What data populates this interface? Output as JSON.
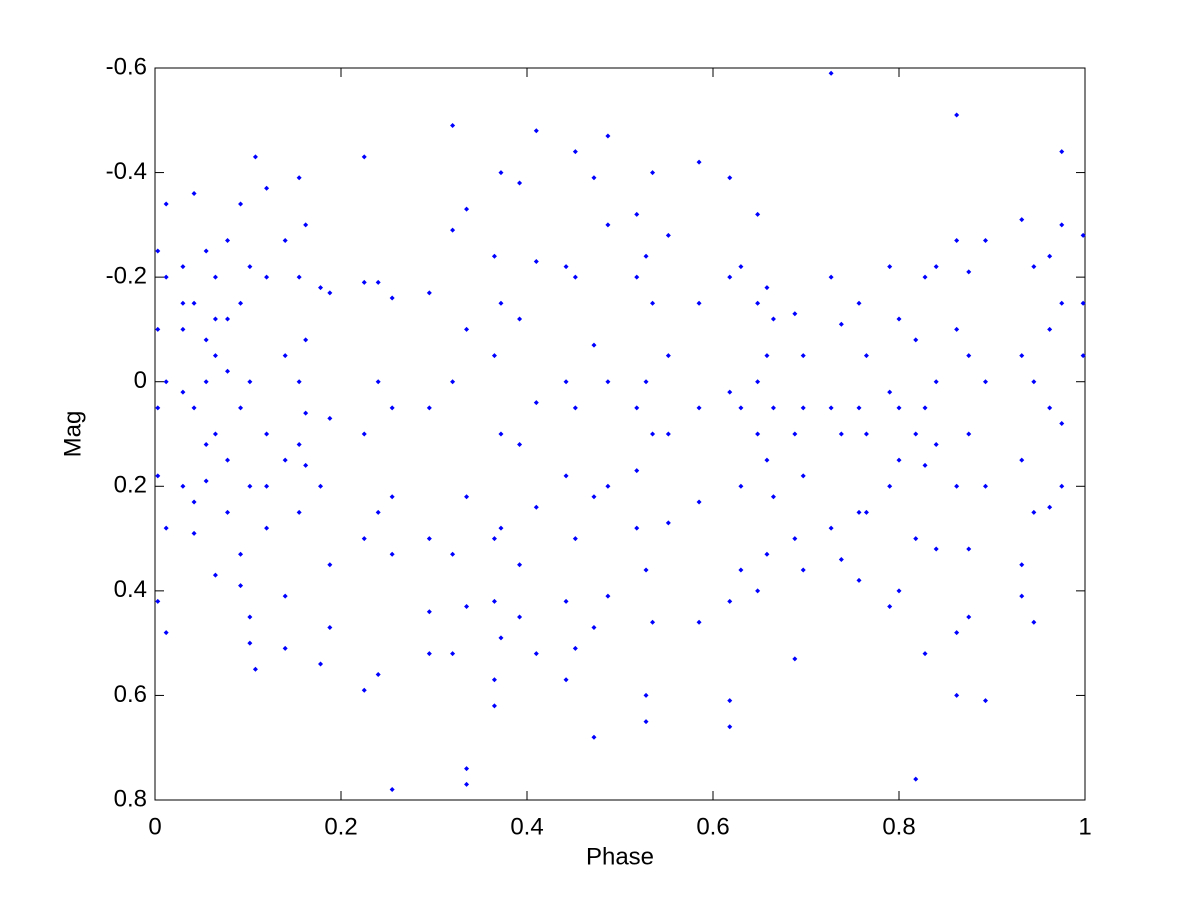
{
  "chart_data": {
    "type": "scatter",
    "x_label": "Phase",
    "y_label": "Mag",
    "color": "#0000ff",
    "xlim": [
      0,
      1
    ],
    "xticks": [
      0,
      0.2,
      0.4,
      0.6,
      0.8,
      1
    ],
    "ylim": [
      0.8,
      -0.6
    ],
    "yticks": [
      -0.6,
      -0.4,
      -0.2,
      0,
      0.2,
      0.4,
      0.6,
      0.8
    ],
    "grid": false,
    "x": [
      0.003,
      0.003,
      0.003,
      0.003,
      0.003,
      0.012,
      0.012,
      0.012,
      0.012,
      0.012,
      0.03,
      0.03,
      0.03,
      0.03,
      0.03,
      0.042,
      0.042,
      0.042,
      0.042,
      0.042,
      0.055,
      0.055,
      0.055,
      0.055,
      0.055,
      0.065,
      0.065,
      0.065,
      0.065,
      0.065,
      0.078,
      0.078,
      0.078,
      0.078,
      0.078,
      0.092,
      0.092,
      0.092,
      0.092,
      0.092,
      0.102,
      0.102,
      0.102,
      0.102,
      0.102,
      0.108,
      0.108,
      0.12,
      0.12,
      0.12,
      0.12,
      0.12,
      0.14,
      0.14,
      0.14,
      0.14,
      0.14,
      0.155,
      0.155,
      0.155,
      0.155,
      0.155,
      0.162,
      0.162,
      0.162,
      0.162,
      0.178,
      0.178,
      0.178,
      0.188,
      0.188,
      0.188,
      0.188,
      0.225,
      0.225,
      0.225,
      0.225,
      0.225,
      0.24,
      0.24,
      0.24,
      0.24,
      0.255,
      0.255,
      0.255,
      0.255,
      0.255,
      0.295,
      0.295,
      0.295,
      0.295,
      0.295,
      0.32,
      0.32,
      0.32,
      0.32,
      0.32,
      0.335,
      0.335,
      0.335,
      0.335,
      0.335,
      0.335,
      0.365,
      0.365,
      0.365,
      0.365,
      0.365,
      0.365,
      0.372,
      0.372,
      0.372,
      0.372,
      0.372,
      0.392,
      0.392,
      0.392,
      0.392,
      0.392,
      0.41,
      0.41,
      0.41,
      0.41,
      0.41,
      0.442,
      0.442,
      0.442,
      0.442,
      0.442,
      0.452,
      0.452,
      0.452,
      0.452,
      0.452,
      0.472,
      0.472,
      0.472,
      0.472,
      0.472,
      0.487,
      0.487,
      0.487,
      0.487,
      0.487,
      0.518,
      0.518,
      0.518,
      0.518,
      0.518,
      0.528,
      0.528,
      0.528,
      0.528,
      0.528,
      0.535,
      0.535,
      0.535,
      0.535,
      0.552,
      0.552,
      0.552,
      0.552,
      0.585,
      0.585,
      0.585,
      0.585,
      0.585,
      0.618,
      0.618,
      0.618,
      0.618,
      0.618,
      0.618,
      0.63,
      0.63,
      0.63,
      0.63,
      0.648,
      0.648,
      0.648,
      0.648,
      0.648,
      0.658,
      0.658,
      0.658,
      0.658,
      0.665,
      0.665,
      0.665,
      0.688,
      0.688,
      0.688,
      0.688,
      0.697,
      0.697,
      0.697,
      0.697,
      0.727,
      0.727,
      0.727,
      0.727,
      0.738,
      0.738,
      0.738,
      0.757,
      0.757,
      0.757,
      0.757,
      0.765,
      0.765,
      0.765,
      0.79,
      0.79,
      0.79,
      0.79,
      0.8,
      0.8,
      0.8,
      0.8,
      0.818,
      0.818,
      0.818,
      0.818,
      0.828,
      0.828,
      0.828,
      0.828,
      0.84,
      0.84,
      0.84,
      0.84,
      0.862,
      0.862,
      0.862,
      0.862,
      0.862,
      0.862,
      0.875,
      0.875,
      0.875,
      0.875,
      0.875,
      0.893,
      0.893,
      0.893,
      0.893,
      0.932,
      0.932,
      0.932,
      0.932,
      0.932,
      0.945,
      0.945,
      0.945,
      0.945,
      0.962,
      0.962,
      0.962,
      0.962,
      0.975,
      0.975,
      0.975,
      0.975,
      0.975,
      0.998,
      0.998,
      0.998
    ],
    "values": [
      -0.25,
      -0.1,
      0.05,
      0.18,
      0.42,
      -0.34,
      -0.2,
      0.0,
      0.28,
      0.48,
      -0.22,
      -0.1,
      0.02,
      0.2,
      -0.15,
      -0.36,
      -0.15,
      0.05,
      0.23,
      0.29,
      -0.25,
      -0.08,
      0.0,
      0.12,
      0.19,
      -0.2,
      -0.05,
      0.1,
      0.37,
      -0.12,
      -0.27,
      -0.12,
      -0.02,
      0.25,
      0.15,
      -0.34,
      -0.15,
      0.05,
      0.33,
      0.39,
      -0.22,
      0.0,
      0.2,
      0.5,
      0.45,
      -0.43,
      0.55,
      -0.37,
      -0.2,
      0.1,
      0.28,
      0.2,
      -0.27,
      -0.05,
      0.15,
      0.41,
      0.51,
      -0.39,
      -0.2,
      0.0,
      0.12,
      0.25,
      -0.3,
      -0.08,
      0.06,
      0.16,
      -0.18,
      0.2,
      0.54,
      -0.17,
      0.07,
      0.35,
      0.47,
      -0.43,
      -0.19,
      0.1,
      0.3,
      0.59,
      -0.19,
      0.0,
      0.25,
      0.56,
      -0.16,
      0.05,
      0.22,
      0.33,
      0.78,
      -0.17,
      0.05,
      0.3,
      0.52,
      0.44,
      -0.49,
      -0.29,
      0.0,
      0.33,
      0.52,
      -0.33,
      -0.1,
      0.22,
      0.43,
      0.77,
      0.74,
      -0.24,
      -0.05,
      0.3,
      0.42,
      0.62,
      0.57,
      -0.4,
      -0.15,
      0.1,
      0.28,
      0.49,
      -0.38,
      -0.12,
      0.12,
      0.35,
      0.45,
      -0.48,
      -0.23,
      0.04,
      0.24,
      0.52,
      -0.22,
      0.0,
      0.18,
      0.42,
      0.57,
      -0.44,
      -0.2,
      0.05,
      0.3,
      0.51,
      -0.39,
      -0.07,
      0.22,
      0.47,
      0.68,
      -0.47,
      -0.3,
      0.0,
      0.2,
      0.41,
      -0.32,
      -0.2,
      0.05,
      0.17,
      0.28,
      -0.24,
      0.0,
      0.36,
      0.6,
      0.65,
      -0.4,
      -0.15,
      0.1,
      0.46,
      -0.28,
      -0.05,
      0.1,
      0.27,
      -0.42,
      -0.15,
      0.05,
      0.23,
      0.46,
      -0.39,
      -0.2,
      0.02,
      0.42,
      0.61,
      0.66,
      -0.22,
      0.05,
      0.2,
      0.36,
      -0.32,
      -0.15,
      0.0,
      0.1,
      0.4,
      -0.18,
      -0.05,
      0.15,
      0.33,
      -0.12,
      0.05,
      0.22,
      -0.13,
      0.1,
      0.3,
      0.53,
      -0.05,
      0.05,
      0.18,
      0.36,
      -0.59,
      -0.2,
      0.05,
      0.28,
      -0.11,
      0.1,
      0.34,
      -0.15,
      0.05,
      0.25,
      0.38,
      -0.05,
      0.1,
      0.25,
      -0.22,
      0.02,
      0.2,
      0.43,
      -0.12,
      0.05,
      0.15,
      0.4,
      -0.08,
      0.1,
      0.3,
      0.76,
      -0.2,
      0.05,
      0.16,
      0.52,
      -0.22,
      0.0,
      0.12,
      0.32,
      -0.51,
      -0.27,
      -0.1,
      0.2,
      0.48,
      0.6,
      -0.21,
      -0.05,
      0.1,
      0.32,
      0.45,
      -0.27,
      0.0,
      0.2,
      0.61,
      -0.31,
      -0.05,
      0.15,
      0.35,
      0.41,
      -0.22,
      0.0,
      0.25,
      0.46,
      -0.24,
      -0.1,
      0.05,
      0.24,
      -0.44,
      -0.3,
      -0.15,
      0.08,
      0.2,
      -0.28,
      -0.15,
      -0.05
    ]
  }
}
